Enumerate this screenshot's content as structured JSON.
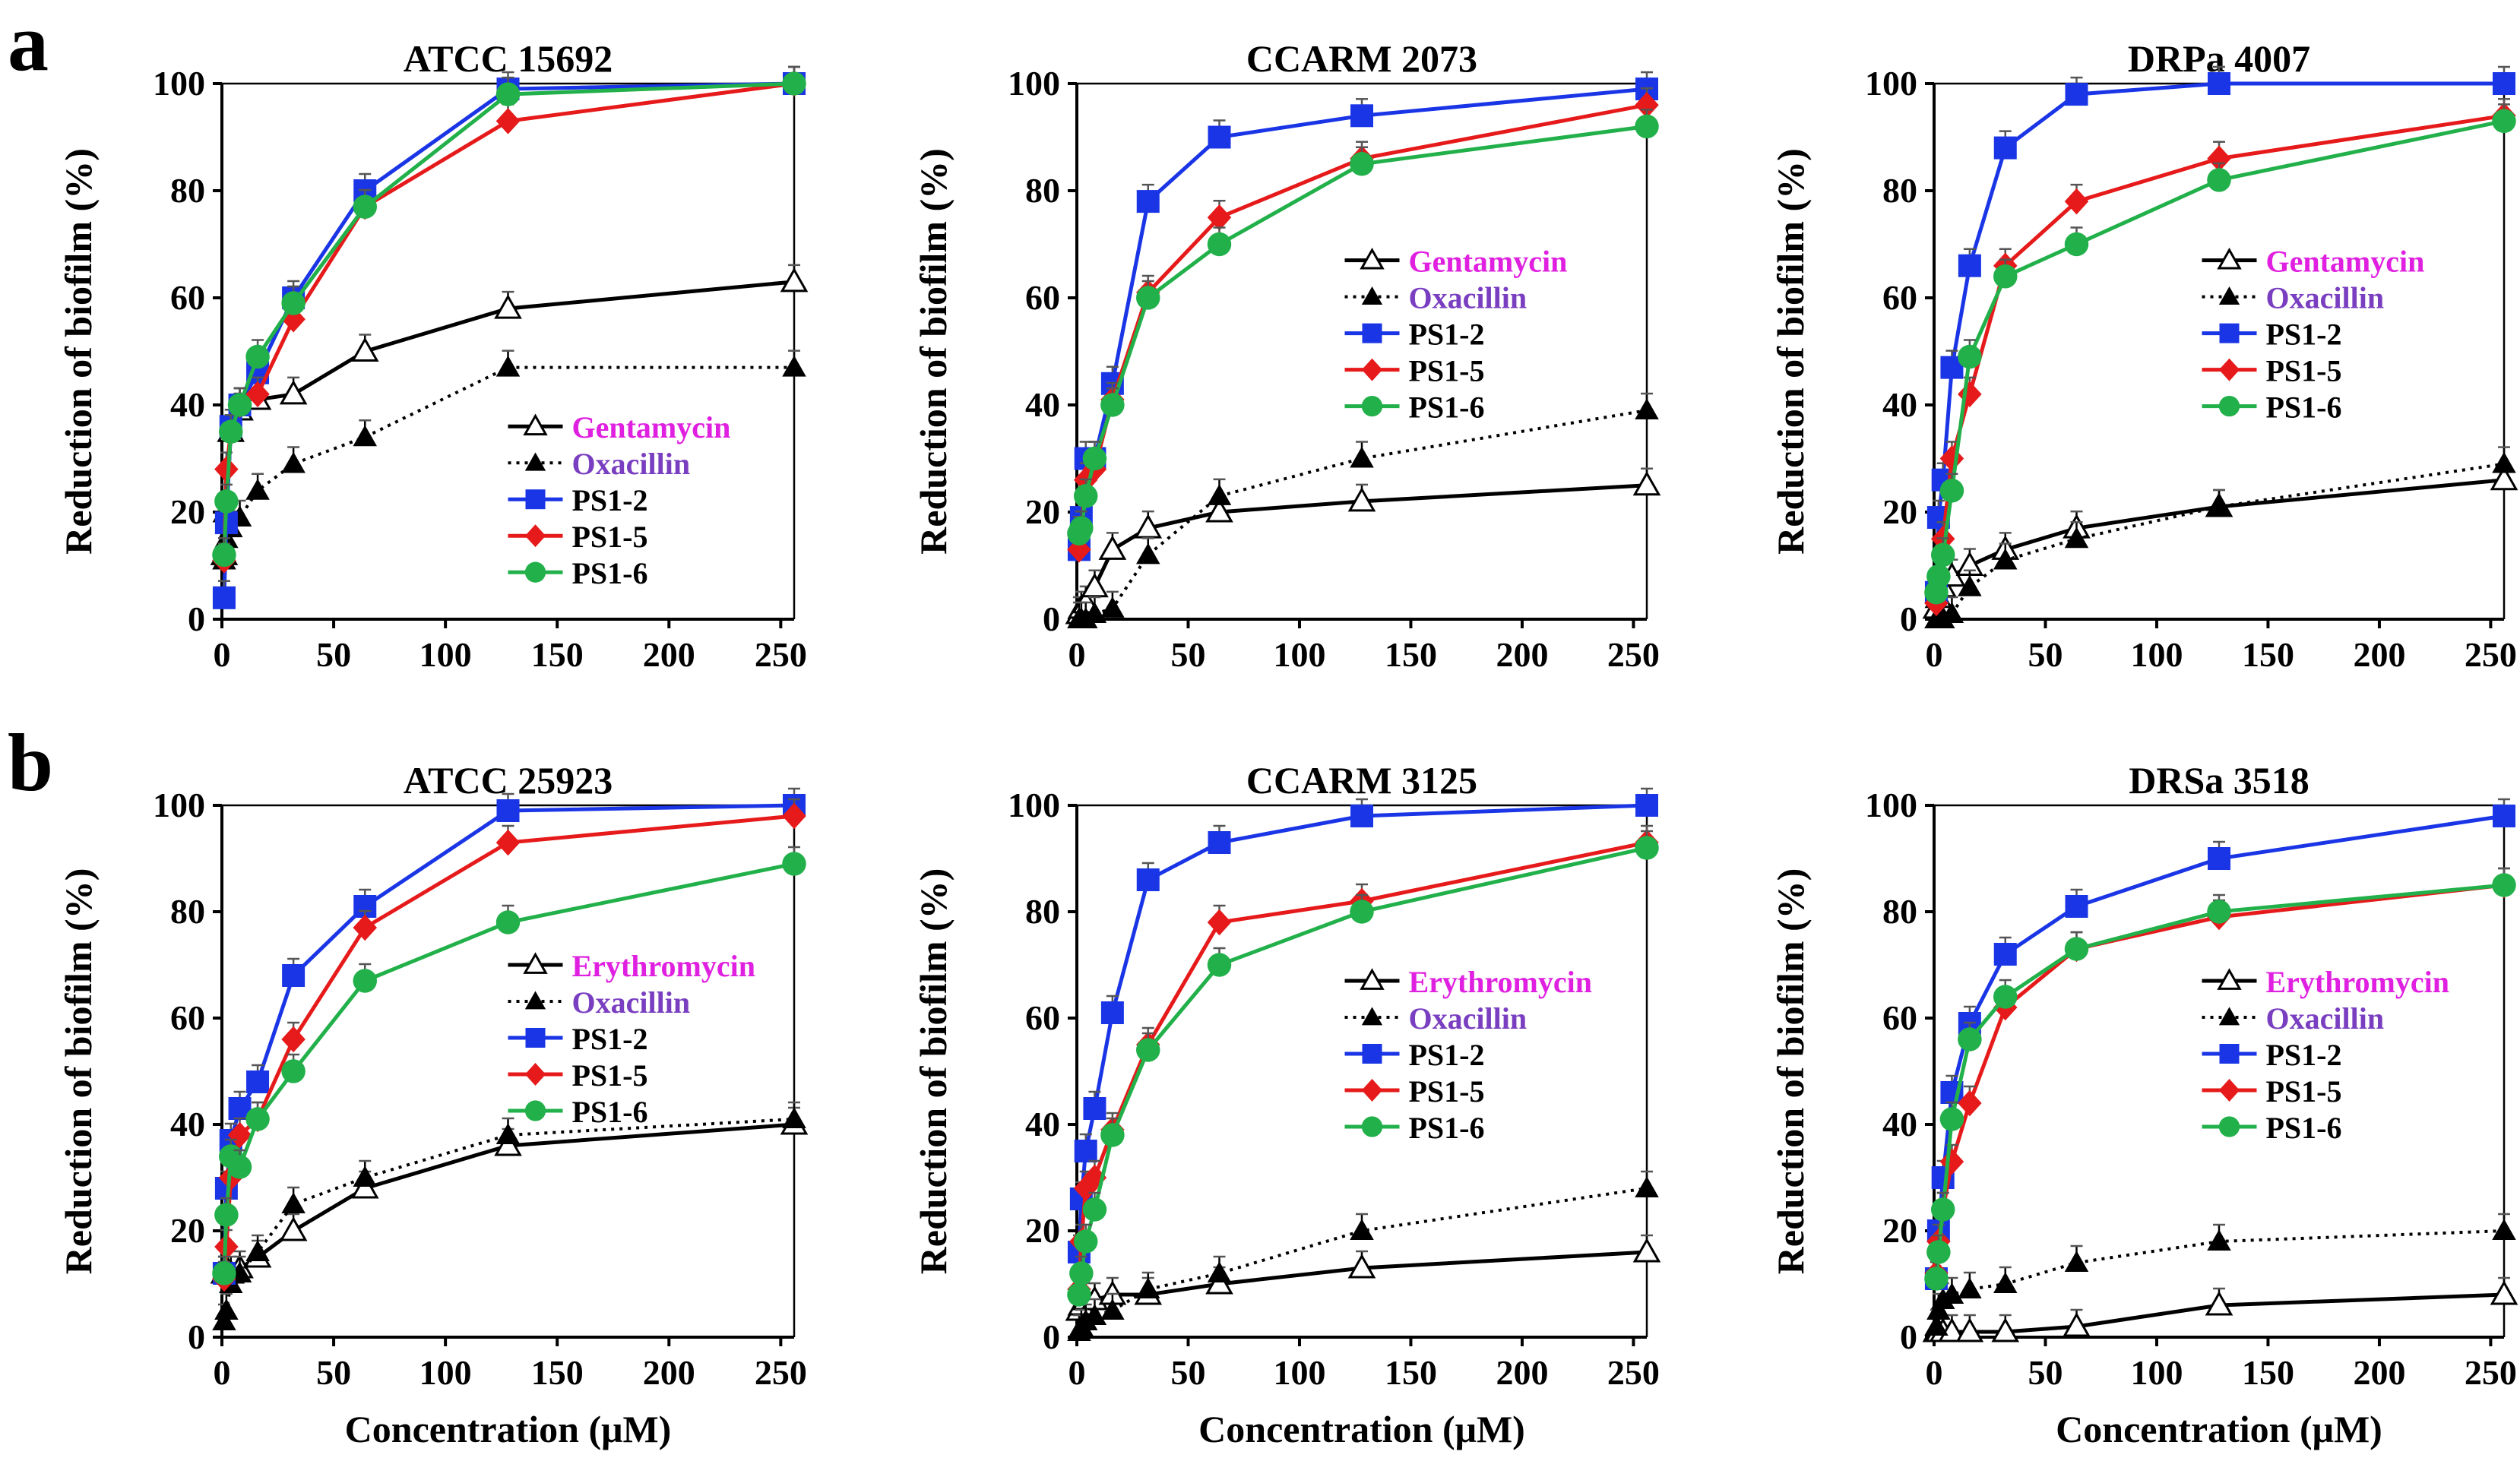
{
  "figure": {
    "panel_labels": [
      "a",
      "b"
    ],
    "xlabel": "Concentration (μM)",
    "ylabel": "Reduction of biofilm (%)"
  },
  "series_styles": [
    {
      "color": "#000000",
      "marker": "triangle-open",
      "dash": "solid"
    },
    {
      "color": "#000000",
      "marker": "triangle-filled",
      "dash": "dotted"
    },
    {
      "color": "#1a35e6",
      "marker": "square",
      "dash": "solid"
    },
    {
      "color": "#e61a1a",
      "marker": "diamond",
      "dash": "solid"
    },
    {
      "color": "#22b04a",
      "marker": "circle",
      "dash": "solid"
    }
  ],
  "legend_label_colors": [
    "#e020e0",
    "#7a3fc0",
    "#000000",
    "#000000",
    "#000000"
  ],
  "chart_data": [
    {
      "type": "line",
      "title": "ATCC 15692",
      "xlabel": "Concentration (μM)",
      "ylabel": "Reduction of biofilm (%)",
      "xlim": [
        0,
        256
      ],
      "ylim": [
        0,
        100
      ],
      "xticks": [
        0,
        50,
        100,
        150,
        200,
        250
      ],
      "yticks": [
        0,
        20,
        40,
        60,
        80,
        100
      ],
      "x": [
        1,
        2,
        4,
        8,
        16,
        32,
        64,
        128,
        256
      ],
      "legend_position": "lower-right",
      "series": [
        {
          "name": "Gentamycin",
          "values": [
            12,
            20,
            35,
            39,
            41,
            42,
            50,
            58,
            63
          ]
        },
        {
          "name": "Oxacillin",
          "values": [
            11,
            15,
            17,
            19,
            24,
            29,
            34,
            47,
            47
          ]
        },
        {
          "name": "PS1-2",
          "values": [
            4,
            18,
            36,
            40,
            46,
            60,
            80,
            99,
            100
          ]
        },
        {
          "name": "PS1-5",
          "values": [
            11,
            28,
            35,
            40,
            42,
            56,
            77,
            93,
            100
          ]
        },
        {
          "name": "PS1-6",
          "values": [
            12,
            22,
            35,
            40,
            49,
            59,
            77,
            98,
            100
          ]
        }
      ]
    },
    {
      "type": "line",
      "title": "CCARM 2073",
      "xlabel": "Concentration (μM)",
      "ylabel": "Reduction of biofilm (%)",
      "xlim": [
        0,
        256
      ],
      "ylim": [
        0,
        100
      ],
      "xticks": [
        0,
        50,
        100,
        150,
        200,
        250
      ],
      "yticks": [
        0,
        20,
        40,
        60,
        80,
        100
      ],
      "x": [
        1,
        2,
        4,
        8,
        16,
        32,
        64,
        128,
        256
      ],
      "legend_position": "center-right",
      "series": [
        {
          "name": "Gentamycin",
          "values": [
            1,
            2,
            3,
            6,
            13,
            17,
            20,
            22,
            25
          ]
        },
        {
          "name": "Oxacillin",
          "values": [
            0,
            0,
            0,
            1,
            2,
            12,
            23,
            30,
            39
          ]
        },
        {
          "name": "PS1-2",
          "values": [
            13,
            19,
            30,
            30,
            44,
            78,
            90,
            94,
            99
          ]
        },
        {
          "name": "PS1-5",
          "values": [
            13,
            17,
            26,
            28,
            41,
            61,
            75,
            86,
            96
          ]
        },
        {
          "name": "PS1-6",
          "values": [
            16,
            17,
            23,
            30,
            40,
            60,
            70,
            85,
            92
          ]
        }
      ]
    },
    {
      "type": "line",
      "title": "DRPa 4007",
      "xlabel": "Concentration (μM)",
      "ylabel": "Reduction of biofilm (%)",
      "xlim": [
        0,
        256
      ],
      "ylim": [
        0,
        100
      ],
      "xticks": [
        0,
        50,
        100,
        150,
        200,
        250
      ],
      "yticks": [
        0,
        20,
        40,
        60,
        80,
        100
      ],
      "x": [
        1,
        2,
        4,
        8,
        16,
        32,
        64,
        128,
        256
      ],
      "legend_position": "center-right",
      "series": [
        {
          "name": "Gentamycin",
          "values": [
            2,
            4,
            6,
            8,
            10,
            13,
            17,
            21,
            26
          ]
        },
        {
          "name": "Oxacillin",
          "values": [
            0,
            0,
            0,
            1,
            6,
            11,
            15,
            21,
            29
          ]
        },
        {
          "name": "PS1-2",
          "values": [
            5,
            19,
            26,
            47,
            66,
            88,
            98,
            100,
            100
          ]
        },
        {
          "name": "PS1-5",
          "values": [
            3,
            8,
            15,
            30,
            42,
            66,
            78,
            86,
            94
          ]
        },
        {
          "name": "PS1-6",
          "values": [
            5,
            8,
            12,
            24,
            49,
            64,
            70,
            82,
            93
          ]
        }
      ]
    },
    {
      "type": "line",
      "title": "ATCC 25923",
      "xlabel": "Concentration (μM)",
      "ylabel": "Reduction of biofilm (%)",
      "xlim": [
        0,
        256
      ],
      "ylim": [
        0,
        100
      ],
      "xticks": [
        0,
        50,
        100,
        150,
        200,
        250
      ],
      "yticks": [
        0,
        20,
        40,
        60,
        80,
        100
      ],
      "x": [
        1,
        2,
        4,
        8,
        16,
        32,
        64,
        128,
        256
      ],
      "legend_position": "center-right",
      "series": [
        {
          "name": "Erythromycin",
          "values": [
            12,
            13,
            12,
            13,
            15,
            20,
            28,
            36,
            40
          ]
        },
        {
          "name": "Oxacillin",
          "values": [
            3,
            5,
            10,
            12,
            16,
            25,
            30,
            38,
            41
          ]
        },
        {
          "name": "PS1-2",
          "values": [
            12,
            28,
            37,
            43,
            48,
            68,
            81,
            99,
            100
          ]
        },
        {
          "name": "PS1-5",
          "values": [
            11,
            17,
            30,
            38,
            41,
            56,
            77,
            93,
            98
          ]
        },
        {
          "name": "PS1-6",
          "values": [
            12,
            23,
            34,
            32,
            41,
            50,
            67,
            78,
            89
          ]
        }
      ]
    },
    {
      "type": "line",
      "title": "CCARM 3125",
      "xlabel": "Concentration (μM)",
      "ylabel": "Reduction of biofilm (%)",
      "xlim": [
        0,
        256
      ],
      "ylim": [
        0,
        100
      ],
      "xticks": [
        0,
        50,
        100,
        150,
        200,
        250
      ],
      "yticks": [
        0,
        20,
        40,
        60,
        80,
        100
      ],
      "x": [
        1,
        2,
        4,
        8,
        16,
        32,
        64,
        128,
        256
      ],
      "legend_position": "center-right",
      "series": [
        {
          "name": "Erythromycin",
          "values": [
            5,
            6,
            7,
            7,
            8,
            8,
            10,
            13,
            16
          ]
        },
        {
          "name": "Oxacillin",
          "values": [
            1,
            2,
            3,
            4,
            5,
            9,
            12,
            20,
            28
          ]
        },
        {
          "name": "PS1-2",
          "values": [
            16,
            26,
            35,
            43,
            61,
            86,
            93,
            98,
            100
          ]
        },
        {
          "name": "PS1-5",
          "values": [
            9,
            18,
            28,
            30,
            39,
            55,
            78,
            82,
            93
          ]
        },
        {
          "name": "PS1-6",
          "values": [
            8,
            12,
            18,
            24,
            38,
            54,
            70,
            80,
            92
          ]
        }
      ]
    },
    {
      "type": "line",
      "title": "DRSa 3518",
      "xlabel": "Concentration (μM)",
      "ylabel": "Reduction of biofilm (%)",
      "xlim": [
        0,
        256
      ],
      "ylim": [
        0,
        100
      ],
      "xticks": [
        0,
        50,
        100,
        150,
        200,
        250
      ],
      "yticks": [
        0,
        20,
        40,
        60,
        80,
        100
      ],
      "x": [
        1,
        2,
        4,
        8,
        16,
        32,
        64,
        128,
        256
      ],
      "legend_position": "center-right",
      "series": [
        {
          "name": "Erythromycin",
          "values": [
            1,
            1,
            1,
            1,
            1,
            1,
            2,
            6,
            8
          ]
        },
        {
          "name": "Oxacillin",
          "values": [
            2,
            5,
            7,
            8,
            9,
            10,
            14,
            18,
            20
          ]
        },
        {
          "name": "PS1-2",
          "values": [
            11,
            20,
            30,
            46,
            59,
            72,
            81,
            90,
            98
          ]
        },
        {
          "name": "PS1-5",
          "values": [
            12,
            18,
            24,
            33,
            44,
            62,
            73,
            79,
            85
          ]
        },
        {
          "name": "PS1-6",
          "values": [
            11,
            16,
            24,
            41,
            56,
            64,
            73,
            80,
            85
          ]
        }
      ]
    }
  ]
}
